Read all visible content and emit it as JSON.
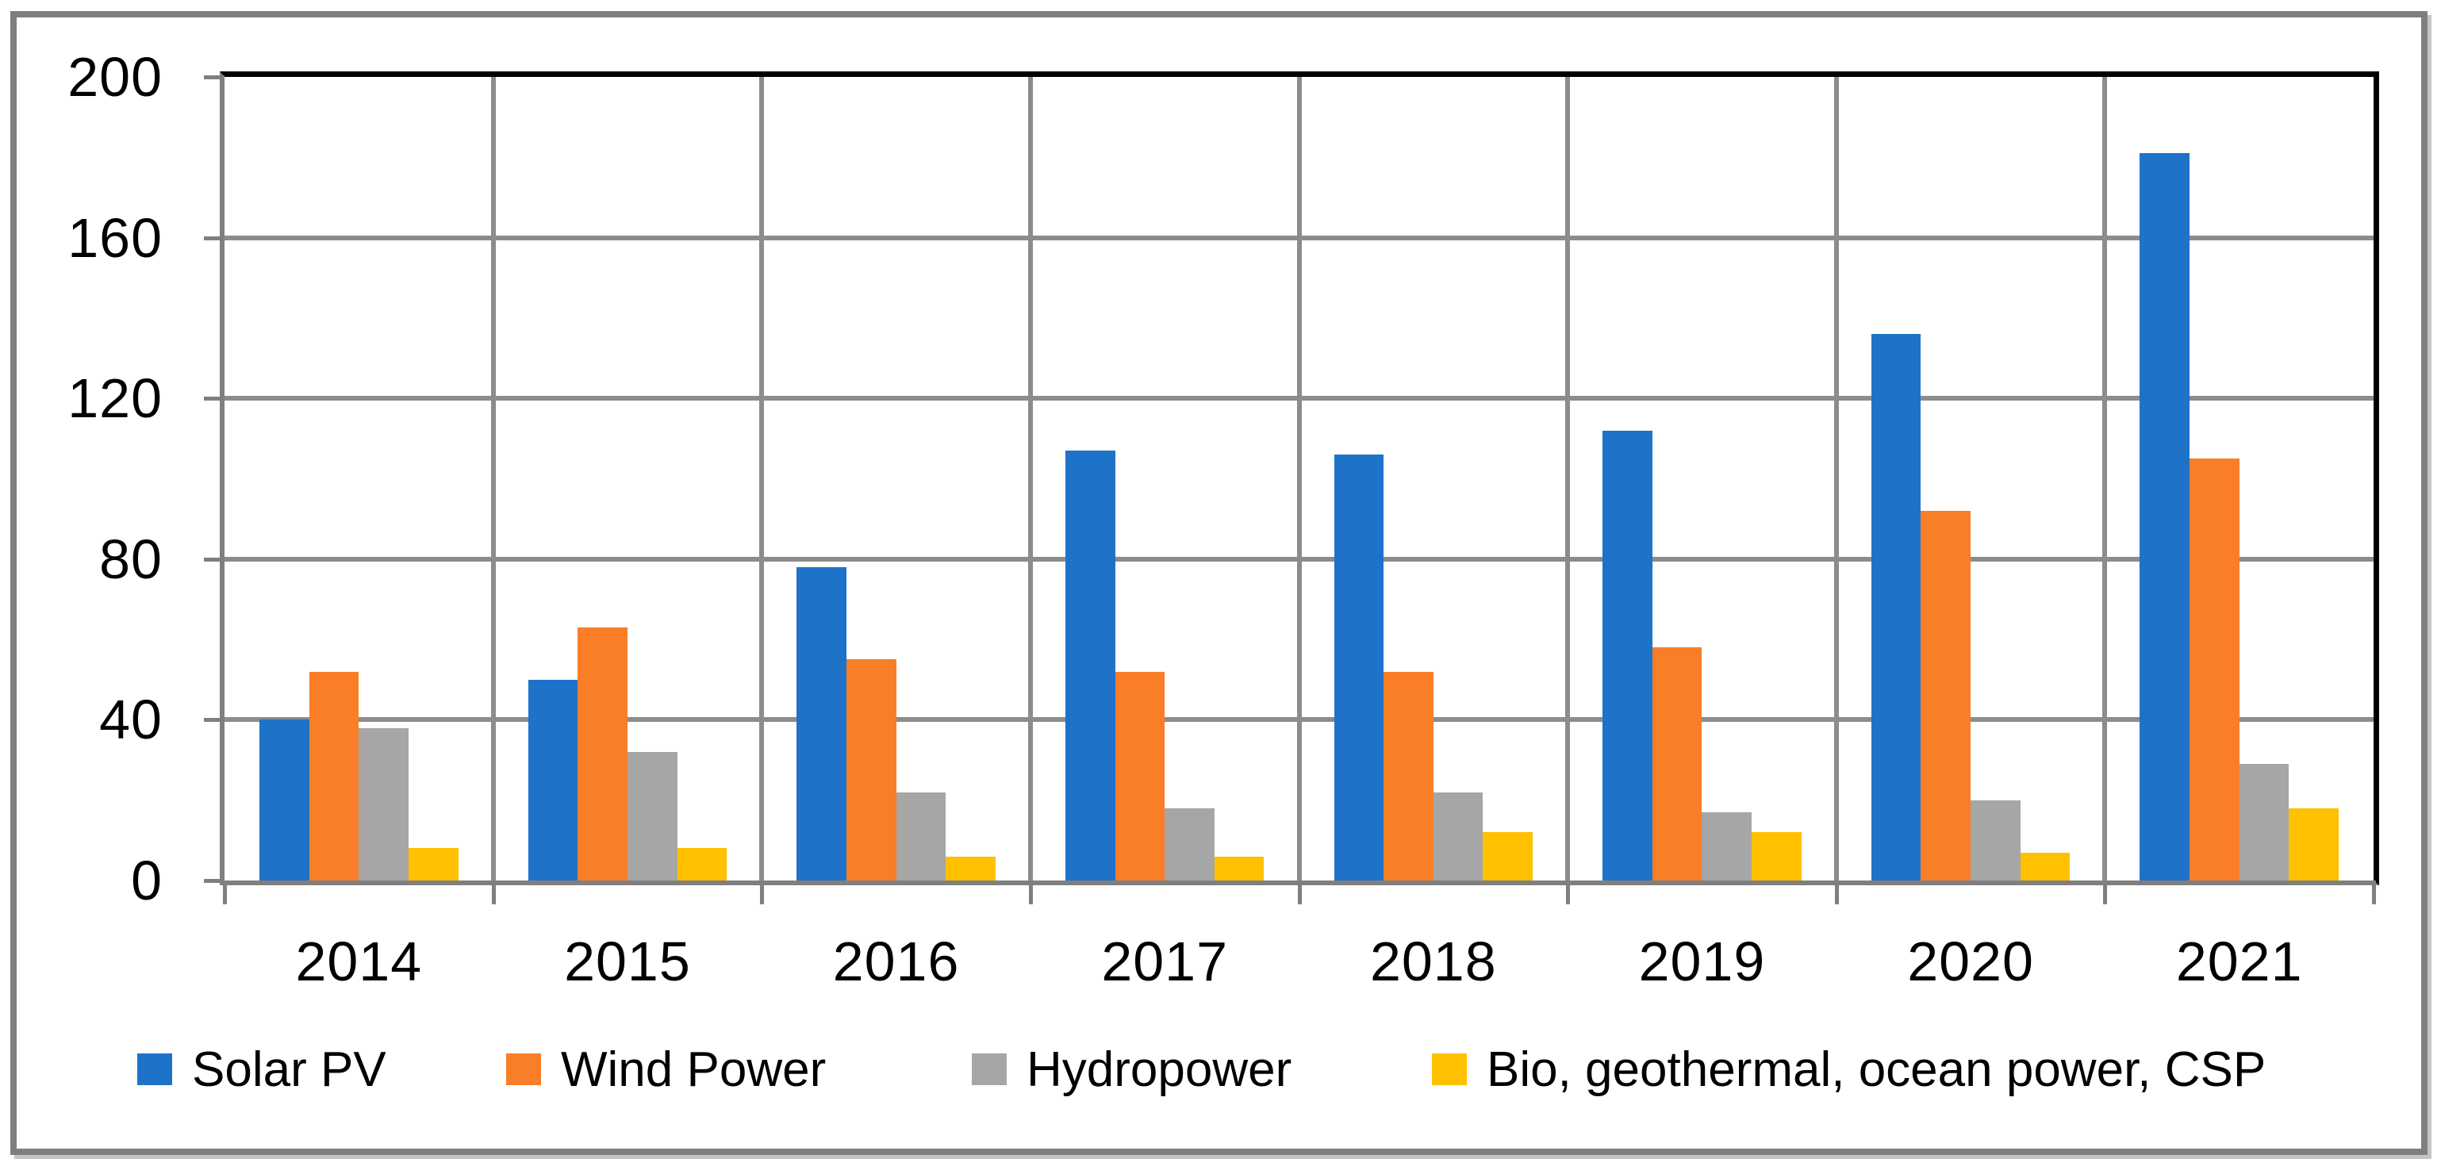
{
  "chart_data": {
    "type": "bar",
    "title": "",
    "xlabel": "",
    "ylabel": "",
    "categories": [
      "2014",
      "2015",
      "2016",
      "2017",
      "2018",
      "2019",
      "2020",
      "2021"
    ],
    "series": [
      {
        "name": "Solar PV",
        "color": "#1e73c8",
        "values": [
          40,
          50,
          78,
          107,
          106,
          112,
          136,
          181
        ]
      },
      {
        "name": "Wind Power",
        "color": "#f97e27",
        "values": [
          52,
          63,
          55,
          52,
          52,
          58,
          92,
          105
        ]
      },
      {
        "name": "Hydropower",
        "color": "#a6a6a6",
        "values": [
          38,
          32,
          22,
          18,
          22,
          17,
          20,
          29
        ]
      },
      {
        "name": "Bio, geothermal, ocean power, CSP",
        "color": "#ffc000",
        "values": [
          8,
          8,
          6,
          6,
          12,
          12,
          7,
          18
        ]
      }
    ],
    "ylim": [
      0,
      200
    ],
    "yticks": [
      0,
      40,
      80,
      120,
      160,
      200
    ],
    "grid": true,
    "legend_position": "bottom",
    "colors": {
      "gridline": "#8c8c8c",
      "axis_line": "#7f7f7f",
      "plot_border_top_right": "#000000",
      "outer_frame": "#7f7f7f",
      "text": "#000000"
    }
  }
}
